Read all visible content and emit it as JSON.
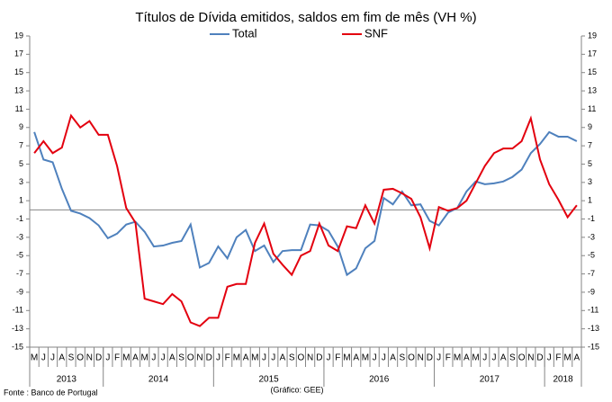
{
  "chart_data": {
    "type": "line",
    "title": "Títulos de Dívida emitidos, saldos em fim de mês  (VH %)",
    "source": "Fonte : Banco de Portugal",
    "credit": "(Gráfico: GEE)",
    "categories": [
      "M",
      "J",
      "J",
      "A",
      "S",
      "O",
      "N",
      "D",
      "J",
      "F",
      "M",
      "A",
      "M",
      "J",
      "J",
      "A",
      "S",
      "O",
      "N",
      "D",
      "J",
      "F",
      "M",
      "A",
      "M",
      "J",
      "J",
      "A",
      "S",
      "O",
      "N",
      "D",
      "J",
      "F",
      "M",
      "A",
      "M",
      "J",
      "J",
      "A",
      "S",
      "O",
      "N",
      "D",
      "J",
      "F",
      "M",
      "A",
      "M",
      "J",
      "J",
      "A",
      "S",
      "O",
      "N",
      "D",
      "J",
      "F",
      "M",
      "A"
    ],
    "years": [
      {
        "label": "2013",
        "months": 8
      },
      {
        "label": "2014",
        "months": 12
      },
      {
        "label": "2015",
        "months": 12
      },
      {
        "label": "2016",
        "months": 12
      },
      {
        "label": "2017",
        "months": 12
      },
      {
        "label": "2018",
        "months": 4
      }
    ],
    "series": [
      {
        "name": "Total",
        "color": "#4f81bd",
        "values": [
          8.5,
          5.5,
          5.2,
          2.3,
          -0.1,
          -0.4,
          -0.9,
          -1.7,
          -3.1,
          -2.6,
          -1.6,
          -1.3,
          -2.4,
          -4.0,
          -3.9,
          -3.6,
          -3.4,
          -1.6,
          -6.3,
          -5.8,
          -4.0,
          -5.3,
          -3.0,
          -2.2,
          -4.5,
          -3.9,
          -5.7,
          -4.5,
          -4.4,
          -4.4,
          -1.6,
          -1.7,
          -2.3,
          -4.0,
          -7.1,
          -6.4,
          -4.2,
          -3.4,
          1.3,
          0.6,
          2.0,
          0.5,
          0.6,
          -1.2,
          -1.7,
          -0.3,
          0.2,
          2.0,
          3.1,
          2.8,
          2.9,
          3.1,
          3.6,
          4.4,
          6.2,
          7.2,
          8.5,
          8.0,
          8.0,
          7.5
        ]
      },
      {
        "name": "SNF",
        "color": "#e3000f",
        "values": [
          6.2,
          7.5,
          6.2,
          6.8,
          10.3,
          9.0,
          9.7,
          8.2,
          8.2,
          4.8,
          0.2,
          -1.4,
          -9.7,
          -10.0,
          -10.3,
          -9.2,
          -10.0,
          -12.3,
          -12.7,
          -11.8,
          -11.8,
          -8.4,
          -8.1,
          -8.1,
          -3.6,
          -1.5,
          -4.8,
          -6.0,
          -7.1,
          -5.0,
          -4.5,
          -1.5,
          -3.9,
          -4.5,
          -1.8,
          -2.0,
          0.5,
          -1.5,
          2.2,
          2.3,
          1.8,
          1.2,
          -0.8,
          -4.2,
          0.3,
          -0.1,
          0.2,
          1.0,
          2.9,
          4.8,
          6.2,
          6.7,
          6.7,
          7.5,
          10.0,
          5.5,
          2.8,
          1.1,
          -0.8,
          0.5
        ]
      }
    ],
    "ylim": [
      -15,
      19
    ],
    "yticks": [
      -15,
      -13,
      -11,
      -9,
      -7,
      -5,
      -3,
      -1,
      1,
      3,
      5,
      7,
      9,
      11,
      13,
      15,
      17,
      19
    ]
  }
}
